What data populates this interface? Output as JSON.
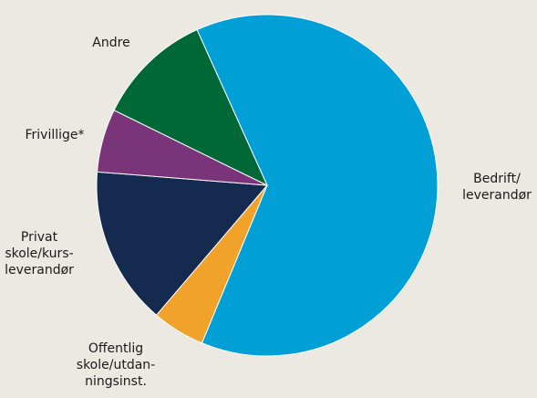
{
  "chart_data": {
    "type": "pie",
    "categories": [
      "Bedrift/\nleverandør",
      "Offentlig\nskole/utdan-\nningsinst.",
      "Privat\nskole/kurs-\nleverandør",
      "Frivillige*",
      "Andre"
    ],
    "values": [
      63,
      5,
      15,
      6,
      11
    ],
    "colors": [
      "#00a0d6",
      "#f0a22a",
      "#142a4f",
      "#7a3479",
      "#006837"
    ]
  }
}
